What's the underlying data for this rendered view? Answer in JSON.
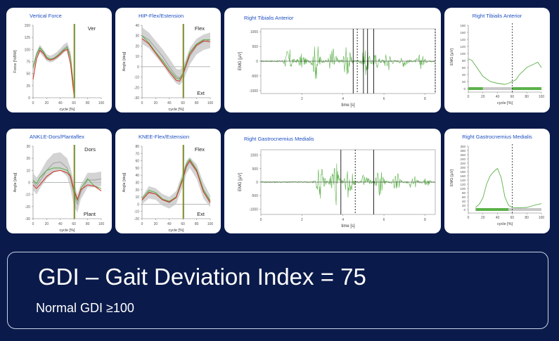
{
  "colors": {
    "background": "#0a1a4a",
    "card": "#ffffff",
    "title": "#1f4fc1",
    "band": "#c4c4c4",
    "green": "#5cb14a",
    "red": "#d13b30",
    "marker_orange": "#d9962a",
    "marker_green": "#3f8a3a",
    "zero_line": "#9aa09a"
  },
  "panels": [
    {
      "id": "vertical-force",
      "title": "Vertical Force",
      "xlabel": "cycle [%]",
      "ylabel": "Force [%BW]",
      "corner_top": "Ver",
      "corner_bottom": "",
      "xticks": [
        "0",
        "20",
        "40",
        "60",
        "80",
        "100"
      ],
      "yticks": [
        "0",
        "25",
        "50",
        "75",
        "100",
        "125",
        "150"
      ]
    },
    {
      "id": "hip",
      "title": "HIP-Flex/Estension",
      "xlabel": "cycle [%]",
      "ylabel": "Angle [deg]",
      "corner_top": "Flex",
      "corner_bottom": "Ext",
      "xticks": [
        "0",
        "20",
        "40",
        "60",
        "80",
        "100"
      ],
      "yticks": [
        "-30",
        "-20",
        "-10",
        "0",
        "10",
        "20",
        "30",
        "40"
      ]
    },
    {
      "id": "ankle",
      "title": "ANKLE-Dors/Plantaflex",
      "xlabel": "cycle [%]",
      "ylabel": "Angle [deg]",
      "corner_top": "Dors",
      "corner_bottom": "Plant",
      "xticks": [
        "0",
        "20",
        "40",
        "60",
        "80",
        "100"
      ],
      "yticks": [
        "-30",
        "-20",
        "-10",
        "0",
        "10",
        "20",
        "30"
      ]
    },
    {
      "id": "knee",
      "title": "KNEE-Flex/Estension",
      "xlabel": "cycle [%]",
      "ylabel": "Angle [deg]",
      "corner_top": "Flex",
      "corner_bottom": "Ext",
      "xticks": [
        "0",
        "20",
        "40",
        "60",
        "80",
        "100"
      ],
      "yticks": [
        "-20",
        "-10",
        "0",
        "10",
        "20",
        "30",
        "40",
        "50",
        "60",
        "70",
        "80"
      ]
    },
    {
      "id": "emg-ta-raw",
      "title": "Right Tibialis Anterior",
      "xlabel": "time [s]",
      "ylabel": "EMG [µV]",
      "xticks": [
        "2",
        "4",
        "6",
        "8"
      ],
      "yticks": [
        "-1000",
        "-500",
        "0",
        "500",
        "1000"
      ]
    },
    {
      "id": "emg-gm-raw",
      "title": "Right Gastrocnemius Medialis",
      "xlabel": "time [s]",
      "ylabel": "EMG [µV]",
      "xticks": [
        "0",
        "2",
        "4",
        "6",
        "8"
      ],
      "yticks": [
        "-1000",
        "-500",
        "0",
        "500",
        "1000"
      ]
    },
    {
      "id": "emg-ta-env",
      "title": "Right Tibialis Anterior",
      "xlabel": "cycle [%]",
      "ylabel": "EMG [µV]",
      "xticks": [
        "0",
        "20",
        "40",
        "60",
        "80",
        "100"
      ],
      "yticks": [
        "0",
        "20",
        "40",
        "60",
        "80",
        "100",
        "120",
        "140",
        "160",
        "180"
      ]
    },
    {
      "id": "emg-gm-env",
      "title": "Right Gastrocnemius Medialis",
      "xlabel": "cycle [%]",
      "ylabel": "EMG [µV]",
      "xticks": [
        "0",
        "20",
        "40",
        "60",
        "80",
        "100"
      ],
      "yticks": [
        "0",
        "20",
        "40",
        "60",
        "80",
        "100",
        "120",
        "140",
        "160",
        "180",
        "200",
        "220",
        "240",
        "260",
        "280",
        "300"
      ]
    }
  ],
  "gdi": {
    "title": "GDI – Gait Deviation Index = 75",
    "note": "Normal GDI ≥100"
  },
  "chart_data": [
    {
      "type": "line",
      "title": "Vertical Force",
      "xlabel": "cycle [%]",
      "ylabel": "Force [%BW]",
      "xlim": [
        0,
        100
      ],
      "ylim": [
        0,
        150
      ],
      "x": [
        0,
        5,
        10,
        15,
        20,
        25,
        30,
        35,
        40,
        45,
        50,
        55,
        60
      ],
      "series": [
        {
          "name": "band_upper",
          "values": [
            68,
            95,
            110,
            100,
            90,
            87,
            90,
            95,
            102,
            110,
            115,
            95,
            25
          ]
        },
        {
          "name": "band_lower",
          "values": [
            52,
            80,
            93,
            85,
            76,
            73,
            75,
            80,
            86,
            93,
            98,
            75,
            8
          ]
        },
        {
          "name": "normal_mean",
          "values": [
            60,
            88,
            102,
            93,
            83,
            80,
            82,
            87,
            94,
            101,
            107,
            85,
            15
          ]
        },
        {
          "name": "green",
          "values": [
            63,
            90,
            104,
            96,
            84,
            80,
            81,
            86,
            93,
            99,
            104,
            83,
            12
          ]
        },
        {
          "name": "red",
          "values": [
            38,
            80,
            98,
            92,
            81,
            78,
            80,
            84,
            90,
            97,
            100,
            70,
            5
          ]
        }
      ],
      "markers": [
        {
          "x": 60,
          "color": "#d9962a"
        },
        {
          "x": 61,
          "color": "#3f8a3a"
        }
      ]
    },
    {
      "type": "line",
      "title": "HIP-Flex/Estension",
      "xlabel": "cycle [%]",
      "ylabel": "Angle [deg]",
      "xlim": [
        0,
        100
      ],
      "ylim": [
        -30,
        40
      ],
      "x": [
        0,
        10,
        20,
        30,
        40,
        50,
        55,
        60,
        70,
        80,
        90,
        100
      ],
      "series": [
        {
          "name": "band_upper",
          "values": [
            38,
            33,
            25,
            17,
            8,
            -2,
            -3,
            0,
            18,
            27,
            31,
            33
          ]
        },
        {
          "name": "band_lower",
          "values": [
            22,
            18,
            10,
            2,
            -8,
            -16,
            -18,
            -14,
            2,
            12,
            16,
            18
          ]
        },
        {
          "name": "normal_mean",
          "values": [
            30,
            26,
            18,
            10,
            0,
            -9,
            -11,
            -7,
            10,
            20,
            24,
            26
          ]
        },
        {
          "name": "green",
          "values": [
            30,
            23,
            14,
            6,
            -3,
            -11,
            -12,
            -6,
            14,
            22,
            26,
            26
          ]
        },
        {
          "name": "red",
          "values": [
            27,
            22,
            13,
            4,
            -5,
            -13,
            -14,
            -8,
            12,
            21,
            25,
            24
          ]
        }
      ],
      "markers": [
        {
          "x": 60,
          "color": "#d9962a"
        },
        {
          "x": 61,
          "color": "#3f8a3a"
        }
      ]
    },
    {
      "type": "line",
      "title": "ANKLE-Dors/Plantaflex",
      "xlabel": "cycle [%]",
      "ylabel": "Angle [deg]",
      "xlim": [
        0,
        100
      ],
      "ylim": [
        -30,
        30
      ],
      "x": [
        0,
        5,
        10,
        20,
        30,
        40,
        50,
        55,
        60,
        65,
        70,
        80,
        90,
        100
      ],
      "series": [
        {
          "name": "band_upper",
          "values": [
            8,
            4,
            8,
            18,
            24,
            25,
            20,
            12,
            0,
            -10,
            -2,
            8,
            8,
            9
          ]
        },
        {
          "name": "band_lower",
          "values": [
            -6,
            -10,
            -5,
            3,
            8,
            10,
            5,
            -5,
            -20,
            -25,
            -14,
            -4,
            -4,
            -3
          ]
        },
        {
          "name": "normal_mean",
          "values": [
            1,
            -3,
            1,
            10,
            16,
            17,
            12,
            3,
            -10,
            -18,
            -8,
            2,
            2,
            3
          ]
        },
        {
          "name": "green",
          "values": [
            2,
            -1,
            4,
            10,
            12,
            12,
            10,
            6,
            -8,
            -15,
            -5,
            3,
            -3,
            -5
          ]
        },
        {
          "name": "red",
          "values": [
            -2,
            -5,
            -2,
            5,
            9,
            10,
            8,
            5,
            -6,
            -14,
            -6,
            -2,
            -3,
            -7
          ]
        }
      ],
      "markers": [
        {
          "x": 60,
          "color": "#d9962a"
        },
        {
          "x": 61,
          "color": "#3f8a3a"
        }
      ]
    },
    {
      "type": "line",
      "title": "KNEE-Flex/Estension",
      "xlabel": "cycle [%]",
      "ylabel": "Angle [deg]",
      "xlim": [
        0,
        100
      ],
      "ylim": [
        -20,
        80
      ],
      "x": [
        0,
        10,
        20,
        30,
        40,
        50,
        60,
        65,
        70,
        80,
        90,
        100
      ],
      "series": [
        {
          "name": "band_upper",
          "values": [
            10,
            25,
            22,
            14,
            10,
            18,
            45,
            60,
            65,
            55,
            30,
            12
          ],
          "dashed": false
        },
        {
          "name": "band_lower",
          "values": [
            0,
            8,
            6,
            -2,
            -6,
            0,
            25,
            42,
            50,
            35,
            8,
            -4
          ]
        },
        {
          "name": "normal_mean",
          "values": [
            5,
            17,
            14,
            6,
            2,
            9,
            35,
            51,
            58,
            45,
            19,
            4
          ]
        },
        {
          "name": "green",
          "values": [
            8,
            19,
            16,
            7,
            4,
            10,
            38,
            56,
            62,
            48,
            20,
            5
          ]
        },
        {
          "name": "red",
          "values": [
            6,
            16,
            14,
            6,
            3,
            9,
            35,
            53,
            60,
            46,
            17,
            2
          ]
        }
      ],
      "markers": [
        {
          "x": 60,
          "color": "#d9962a"
        },
        {
          "x": 61,
          "color": "#3f8a3a"
        }
      ]
    },
    {
      "type": "line",
      "title": "Right Tibialis Anterior",
      "xlabel": "time [s]",
      "ylabel": "EMG [µV]",
      "xlim": [
        0,
        8.5
      ],
      "ylim": [
        -1100,
        1100
      ],
      "bursts": [
        {
          "center": 1.35,
          "amp": 450
        },
        {
          "center": 2.0,
          "amp": 250
        },
        {
          "center": 2.7,
          "amp": 650
        },
        {
          "center": 3.5,
          "amp": 500
        },
        {
          "center": 4.2,
          "amp": 550
        },
        {
          "center": 5.1,
          "amp": 500
        },
        {
          "center": 5.6,
          "amp": 250
        },
        {
          "center": 6.2,
          "amp": 350
        },
        {
          "center": 7.0,
          "amp": 200
        },
        {
          "center": 7.8,
          "amp": 250
        }
      ],
      "markers": [
        {
          "x": 4.5,
          "style": "solid"
        },
        {
          "x": 4.7,
          "style": "dashed"
        },
        {
          "x": 5.0,
          "style": "solid"
        },
        {
          "x": 5.2,
          "style": "solid"
        },
        {
          "x": 5.5,
          "style": "solid"
        },
        {
          "x": 8.5,
          "style": "dashed"
        }
      ]
    },
    {
      "type": "line",
      "title": "Right Gastrocnemius Medialis",
      "xlabel": "time [s]",
      "ylabel": "EMG [µV]",
      "xlim": [
        0,
        8.5
      ],
      "ylim": [
        -1200,
        1200
      ],
      "bursts": [
        {
          "center": 2.9,
          "amp": 600
        },
        {
          "center": 3.6,
          "amp": 1000
        },
        {
          "center": 4.3,
          "amp": 700
        },
        {
          "center": 5.1,
          "amp": 400
        },
        {
          "center": 5.8,
          "amp": 600
        },
        {
          "center": 6.6,
          "amp": 350
        },
        {
          "center": 7.4,
          "amp": 300
        },
        {
          "center": 8.1,
          "amp": 150
        }
      ],
      "markers": [
        {
          "x": 3.9,
          "style": "solid"
        },
        {
          "x": 4.6,
          "style": "dashed"
        },
        {
          "x": 5.5,
          "style": "solid"
        }
      ]
    },
    {
      "type": "line",
      "title": "Right Tibialis Anterior",
      "xlabel": "cycle [%]",
      "ylabel": "EMG [µV]",
      "xlim": [
        0,
        100
      ],
      "ylim": [
        0,
        180
      ],
      "x": [
        0,
        5,
        10,
        20,
        30,
        40,
        50,
        55,
        60,
        65,
        70,
        80,
        90,
        95,
        100
      ],
      "series": [
        {
          "name": "envelope",
          "values": [
            85,
            80,
            65,
            35,
            20,
            15,
            12,
            15,
            20,
            25,
            40,
            60,
            70,
            75,
            60
          ]
        }
      ],
      "activation": {
        "active": [
          [
            0,
            20
          ],
          [
            60,
            100
          ]
        ],
        "inactive": [
          [
            20,
            60
          ]
        ]
      },
      "markers": [
        {
          "x": 60,
          "style": "dashed"
        }
      ]
    },
    {
      "type": "line",
      "title": "Right Gastrocnemius Medialis",
      "xlabel": "cycle [%]",
      "ylabel": "EMG [µV]",
      "xlim": [
        0,
        100
      ],
      "ylim": [
        0,
        300
      ],
      "x": [
        10,
        15,
        20,
        25,
        30,
        35,
        40,
        45,
        50,
        55,
        60,
        65,
        70,
        80,
        90,
        100
      ],
      "series": [
        {
          "name": "envelope",
          "values": [
            10,
            25,
            55,
            120,
            160,
            180,
            195,
            150,
            60,
            20,
            10,
            8,
            8,
            10,
            20,
            28
          ]
        }
      ],
      "activation": {
        "active": [
          [
            10,
            55
          ]
        ],
        "inactive": [
          [
            55,
            100
          ]
        ]
      },
      "markers": [
        {
          "x": 60,
          "style": "dashed"
        }
      ]
    }
  ]
}
